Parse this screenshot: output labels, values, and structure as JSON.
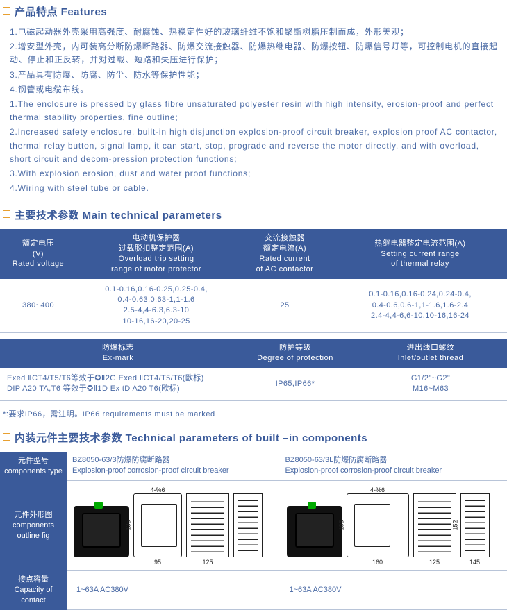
{
  "sections": {
    "features_title": "产品特点 Features",
    "params_title": "主要技术参数 Main technical parameters",
    "builtin_title": "内装元件主要技术参数 Technical parameters of built –in components"
  },
  "features_cn": [
    "1.电磁起动器外壳采用高强度、耐腐蚀、热稳定性好的玻璃纤维不饱和聚酯树脂压制而成，外形美观；",
    "2.增安型外壳，内可装高分断防爆断路器、防爆交流接触器、防爆热继电器、防爆按钮、防爆信号灯等，可控制电机的直接起动、停止和正反转，并对过载、短路和失压进行保护；",
    "3.产品具有防爆、防腐、防尘、防水等保护性能；",
    "4.钢管或电缆布线。"
  ],
  "features_en": [
    "1.The enclosure is pressed by glass fibre unsaturated polyester resin with high intensity, erosion-proof and perfect thermal stability properties, fine outline;",
    "2.Increased safety enclosure, built-in high disjunction explosion-proof circuit breaker, explosion proof AC contactor, thermal relay button, signal lamp, it can start, stop, prograde and reverse the motor directly, and with overload, short circuit and decom-pression protection functions;",
    "3.With explosion erosion, dust and water proof functions;",
    "4.Wiring with steel tube or cable."
  ],
  "params_table1": {
    "headers": [
      "额定电压\n(V)\nRated voltage",
      "电动机保护器\n过载脱扣整定范围(A)\nOverload trip setting\nrange of motor protector",
      "交流接触器\n额定电流(A)\nRated current\nof AC contactor",
      "热继电器整定电流范围(A)\nSetting current range\nof thermal relay"
    ],
    "row": [
      "380~400",
      "0.1-0.16,0.16-0.25,0.25-0.4,\n0.4-0.63,0.63-1,1-1.6\n2.5-4,4-6.3,6.3-10\n10-16,16-20,20-25",
      "25",
      "0.1-0.16,0.16-0.24,0.24-0.4,\n0.4-0.6,0.6-1,1-1.6,1.6-2.4\n2.4-4,4-6,6-10,10-16,16-24"
    ]
  },
  "params_table2": {
    "headers": [
      "防爆标志\nEx-mark",
      "防护等级\nDegree of protection",
      "进出线口螺纹\nInlet/outlet thread"
    ],
    "row": [
      "Exed ⅡCT4/T5/T6等效于✪Ⅱ2G Exed ⅡCT4/T5/T6(欧标)\nDIP A20 TA,T6 等效于✪Ⅱ1D Ex tD A20 T6(欧标)",
      "IP65,IP66*",
      "G1/2\"~G2\"\nM16~M63"
    ]
  },
  "note": "*:要求IP66，需注明。IP66 requirements must be marked",
  "builtin": {
    "row_labels": {
      "type": "元件型号\ncomponents type",
      "outline": "元件外形图\ncomponents\noutline fig",
      "capacity": "接点容量\nCapacity of contact"
    },
    "cols": [
      {
        "type_cn": "BZ8050-63/3防爆防腐断路器",
        "type_en": "Explosion-proof corrosion-proof circuit breaker",
        "dims": {
          "w1": "95",
          "w2": "125",
          "h": "135",
          "top": "4-%6"
        },
        "capacity": "1~63A  AC380V"
      },
      {
        "type_cn": "BZ8050-63/3L防爆防腐断路器",
        "type_en": "Explosion-proof corrosion-proof circuit breaker",
        "dims": {
          "w1": "160",
          "w2": "125",
          "w3": "145",
          "h": "105",
          "h2": "152",
          "top": "4-%6"
        },
        "capacity": "1~63A  AC380V"
      }
    ]
  }
}
